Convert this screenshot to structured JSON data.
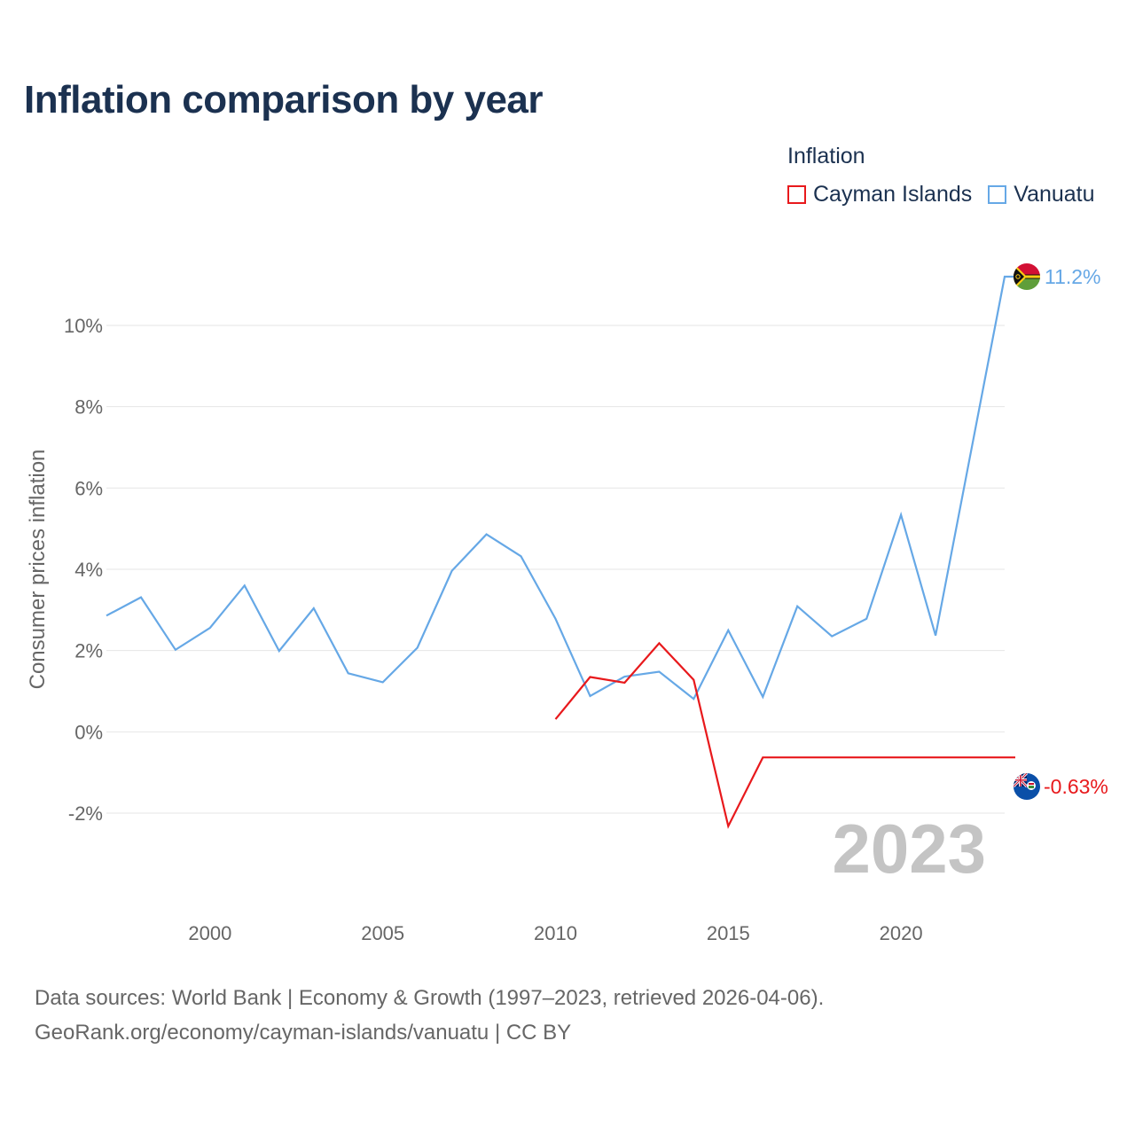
{
  "title": "Inflation comparison by year",
  "legend": {
    "title": "Inflation",
    "items": [
      {
        "label": "Cayman Islands",
        "color": "#e8191c"
      },
      {
        "label": "Vanuatu",
        "color": "#66a8e6"
      }
    ]
  },
  "source": {
    "line1": "Data sources: World Bank | Economy & Growth (1997–2023, retrieved 2026-04-06).",
    "line2": "GeoRank.org/economy/cayman-islands/vanuatu | CC BY"
  },
  "chart_data": {
    "type": "line",
    "title": "Inflation comparison by year",
    "xlabel": "",
    "ylabel": "Consumer prices inflation",
    "xlim": [
      1997,
      2023
    ],
    "ylim": [
      -3.2,
      11.2
    ],
    "x_ticks": [
      2000,
      2005,
      2010,
      2015,
      2020
    ],
    "x_tick_labels": [
      "2000",
      "2005",
      "2010",
      "2015",
      "2020"
    ],
    "y_ticks": [
      -2,
      0,
      2,
      4,
      6,
      8,
      10
    ],
    "y_tick_labels": [
      "-2%",
      "0%",
      "2%",
      "4%",
      "6%",
      "8%",
      "10%"
    ],
    "grid": true,
    "year_watermark": "2023",
    "series": [
      {
        "name": "Vanuatu",
        "color": "#66a8e6",
        "x": [
          1997,
          1998,
          1999,
          2000,
          2001,
          2002,
          2003,
          2004,
          2005,
          2006,
          2007,
          2008,
          2009,
          2010,
          2011,
          2012,
          2013,
          2014,
          2015,
          2016,
          2017,
          2018,
          2019,
          2020,
          2021,
          2022,
          2023
        ],
        "values": [
          2.86,
          3.31,
          2.02,
          2.56,
          3.6,
          1.99,
          3.04,
          1.44,
          1.22,
          2.07,
          3.96,
          4.86,
          4.32,
          2.78,
          0.88,
          1.36,
          1.48,
          0.81,
          2.5,
          0.86,
          3.09,
          2.35,
          2.78,
          5.34,
          2.37,
          6.78,
          11.2
        ],
        "end_label": "11.2%"
      },
      {
        "name": "Cayman Islands",
        "color": "#e8191c",
        "x": [
          2010,
          2011,
          2012,
          2013,
          2014,
          2015,
          2016,
          2017,
          2018,
          2019,
          2020,
          2021,
          2022,
          2023
        ],
        "values": [
          0.31,
          1.35,
          1.21,
          2.18,
          1.28,
          -2.32,
          -0.63,
          -0.63,
          -0.63,
          -0.63,
          -0.63,
          -0.63,
          -0.63,
          -0.63
        ],
        "end_label": "-0.63%"
      }
    ]
  }
}
